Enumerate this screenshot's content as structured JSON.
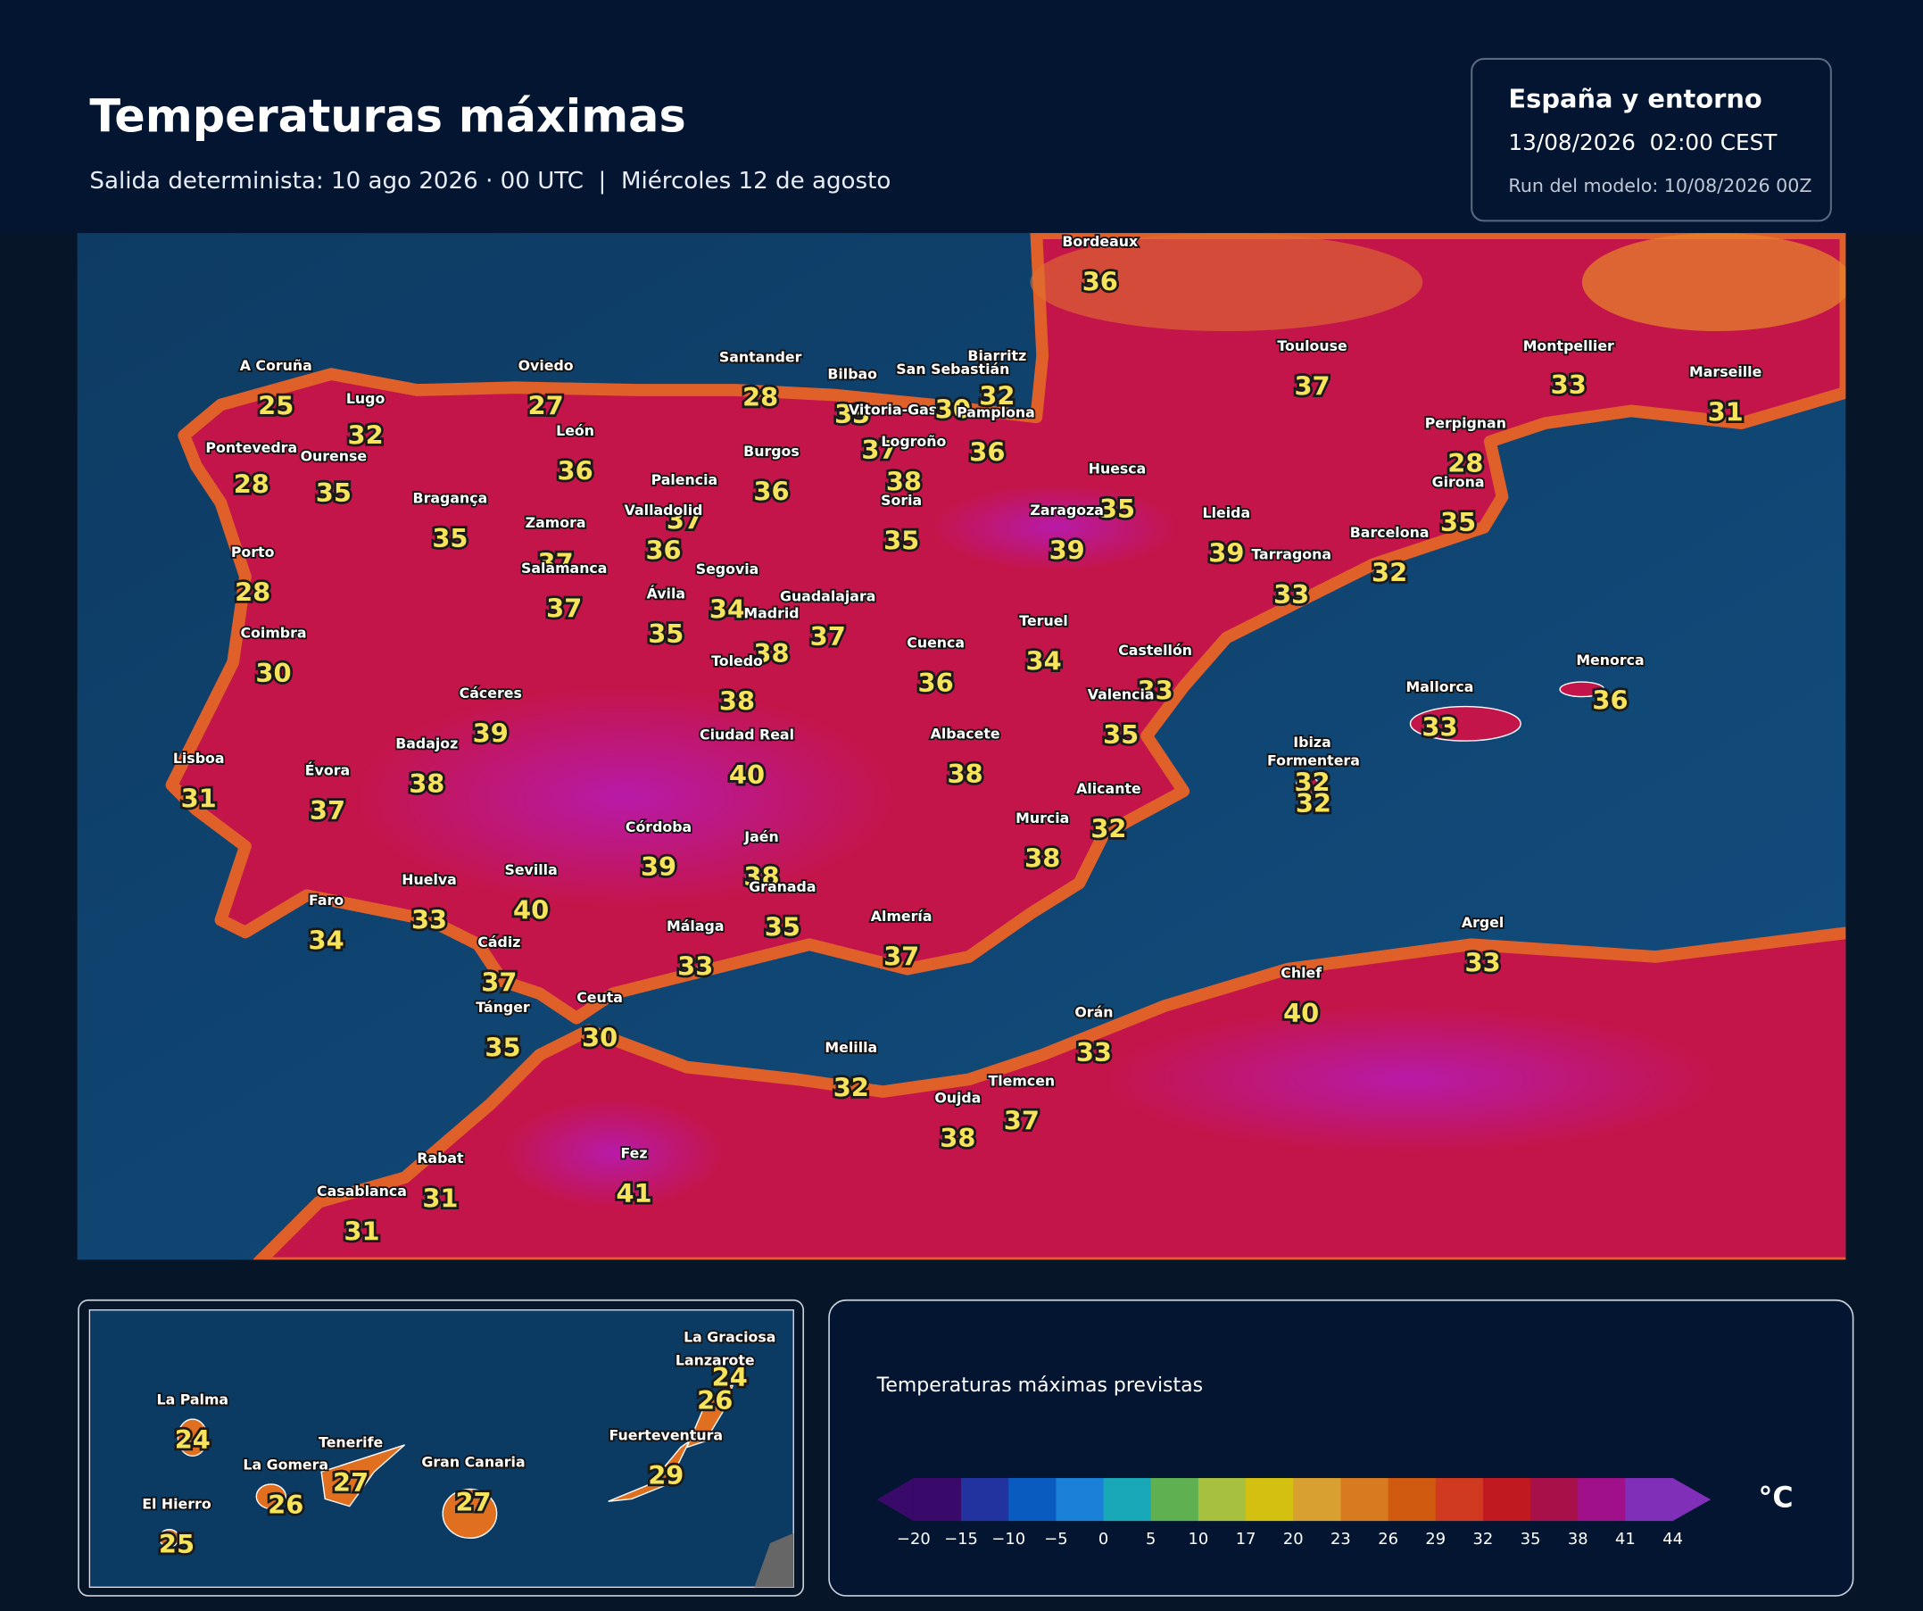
{
  "header": {
    "title": "Temperaturas máximas",
    "subtitle": "Salida determinista: 10 ago 2026 · 00 UTC  |  Miércoles 12 de agosto"
  },
  "info_box": {
    "region": "España y entorno",
    "valid_time": "13/08/2026  02:00 CEST",
    "run": "Run del modelo: 10/08/2026 00Z"
  },
  "map": {
    "cities": [
      {
        "name": "A Coruña",
        "value": 25
      },
      {
        "name": "Lugo",
        "value": 32
      },
      {
        "name": "Oviedo",
        "value": 27
      },
      {
        "name": "Santander",
        "value": 28
      },
      {
        "name": "Bilbao",
        "value": 33
      },
      {
        "name": "Vitoria-Gasteiz",
        "value": 37
      },
      {
        "name": "San Sebastián",
        "value": 30
      },
      {
        "name": "Biarritz",
        "value": 32
      },
      {
        "name": "Pamplona",
        "value": 36
      },
      {
        "name": "Logroño",
        "value": 38
      },
      {
        "name": "Bordeaux",
        "value": 36
      },
      {
        "name": "Toulouse",
        "value": 37
      },
      {
        "name": "Montpellier",
        "value": 33
      },
      {
        "name": "Marseille",
        "value": 31
      },
      {
        "name": "Perpignan",
        "value": 28
      },
      {
        "name": "Girona",
        "value": 35
      },
      {
        "name": "Barcelona",
        "value": 32
      },
      {
        "name": "Lleida",
        "value": 39
      },
      {
        "name": "Tarragona",
        "value": 33
      },
      {
        "name": "Huesca",
        "value": 35
      },
      {
        "name": "Zaragoza",
        "value": 39
      },
      {
        "name": "Soria",
        "value": 35
      },
      {
        "name": "Burgos",
        "value": 36
      },
      {
        "name": "León",
        "value": 36
      },
      {
        "name": "Palencia",
        "value": 37
      },
      {
        "name": "Valladolid",
        "value": 36
      },
      {
        "name": "Zamora",
        "value": 37
      },
      {
        "name": "Salamanca",
        "value": 37
      },
      {
        "name": "Bragança",
        "value": 35
      },
      {
        "name": "Ourense",
        "value": 35
      },
      {
        "name": "Pontevedra",
        "value": 28
      },
      {
        "name": "Porto",
        "value": 28
      },
      {
        "name": "Coimbra",
        "value": 30
      },
      {
        "name": "Segovia",
        "value": 34
      },
      {
        "name": "Ávila",
        "value": 35
      },
      {
        "name": "Madrid",
        "value": 38
      },
      {
        "name": "Guadalajara",
        "value": 37
      },
      {
        "name": "Toledo",
        "value": 38
      },
      {
        "name": "Cuenca",
        "value": 36
      },
      {
        "name": "Teruel",
        "value": 34
      },
      {
        "name": "Castellón",
        "value": 33
      },
      {
        "name": "Valencia",
        "value": 35
      },
      {
        "name": "Cáceres",
        "value": 39
      },
      {
        "name": "Badajoz",
        "value": 38
      },
      {
        "name": "Évora",
        "value": 37
      },
      {
        "name": "Lisboa",
        "value": 31
      },
      {
        "name": "Ciudad Real",
        "value": 40
      },
      {
        "name": "Albacete",
        "value": 38
      },
      {
        "name": "Alicante",
        "value": 32
      },
      {
        "name": "Murcia",
        "value": 38
      },
      {
        "name": "Córdoba",
        "value": 39
      },
      {
        "name": "Jaén",
        "value": 38
      },
      {
        "name": "Granada",
        "value": 35
      },
      {
        "name": "Sevilla",
        "value": 40
      },
      {
        "name": "Huelva",
        "value": 33
      },
      {
        "name": "Faro",
        "value": 34
      },
      {
        "name": "Cádiz",
        "value": 37
      },
      {
        "name": "Málaga",
        "value": 33
      },
      {
        "name": "Almería",
        "value": 37
      },
      {
        "name": "Ibiza",
        "value": 32
      },
      {
        "name": "Formentera",
        "value": 32
      },
      {
        "name": "Mallorca",
        "value": 33
      },
      {
        "name": "Menorca",
        "value": 36
      },
      {
        "name": "Tánger",
        "value": 35
      },
      {
        "name": "Ceuta",
        "value": 30
      },
      {
        "name": "Melilla",
        "value": 32
      },
      {
        "name": "Orán",
        "value": 33
      },
      {
        "name": "Oujda",
        "value": 38
      },
      {
        "name": "Tlemcen",
        "value": 37
      },
      {
        "name": "Chlef",
        "value": 40
      },
      {
        "name": "Argel",
        "value": 33
      },
      {
        "name": "Rabat",
        "value": 31
      },
      {
        "name": "Casablanca",
        "value": 31
      },
      {
        "name": "Fez",
        "value": 41
      }
    ]
  },
  "inset": {
    "islands": [
      {
        "name": "La Graciosa",
        "value": 24
      },
      {
        "name": "Lanzarote",
        "value": 26
      },
      {
        "name": "Fuerteventura",
        "value": 29
      },
      {
        "name": "La Palma",
        "value": 24
      },
      {
        "name": "Tenerife",
        "value": 27
      },
      {
        "name": "La Gomera",
        "value": 26
      },
      {
        "name": "Gran Canaria",
        "value": 27
      },
      {
        "name": "El Hierro",
        "value": 25
      }
    ]
  },
  "legend": {
    "title": "Temperaturas máximas previstas",
    "unit": "°C",
    "colors": [
      "#3a0a6a",
      "#2233a0",
      "#0a5bbf",
      "#1a80d8",
      "#18a8b8",
      "#5fb050",
      "#a8c040",
      "#d4c010",
      "#d8a030",
      "#d87a20",
      "#d05a10",
      "#d03a20",
      "#c01a20",
      "#a8104a",
      "#a0108a",
      "#8030b8"
    ],
    "ticks": [
      {
        "value": -20,
        "label": "−20"
      },
      {
        "value": -15,
        "label": "−15"
      },
      {
        "value": -10,
        "label": "−10"
      },
      {
        "value": -5,
        "label": "−5"
      },
      0,
      5,
      10,
      17,
      20,
      23,
      26,
      29,
      32,
      35,
      38,
      41,
      44
    ]
  }
}
